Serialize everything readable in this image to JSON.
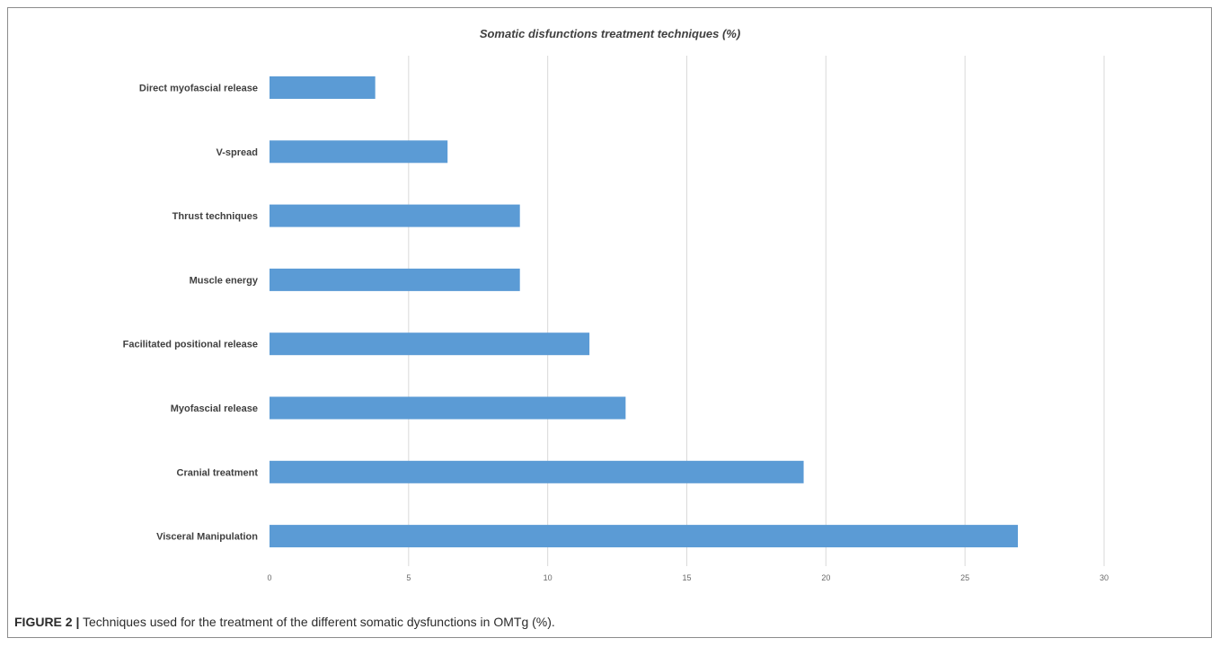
{
  "chart_data": {
    "type": "bar",
    "orientation": "horizontal",
    "title": "Somatic disfunctions treatment techniques (%)",
    "xlabel": "",
    "ylabel": "",
    "categories": [
      "Direct myofascial release",
      "V-spread",
      "Thrust techniques",
      "Muscle energy",
      "Facilitated positional release",
      "Myofascial release",
      "Cranial treatment",
      "Visceral Manipulation"
    ],
    "values": [
      3.8,
      6.4,
      9.0,
      9.0,
      11.5,
      12.8,
      19.2,
      26.9
    ],
    "xlim": [
      0,
      30
    ],
    "xticks": [
      "0",
      "5",
      "10",
      "15",
      "20",
      "25",
      "30"
    ],
    "grid": "vertical",
    "bar_color": "#5b9bd5",
    "legend": "none"
  },
  "caption": {
    "label": "FIGURE 2 |",
    "text": " Techniques used for the treatment of the different somatic dysfunctions in OMTg (%)."
  }
}
